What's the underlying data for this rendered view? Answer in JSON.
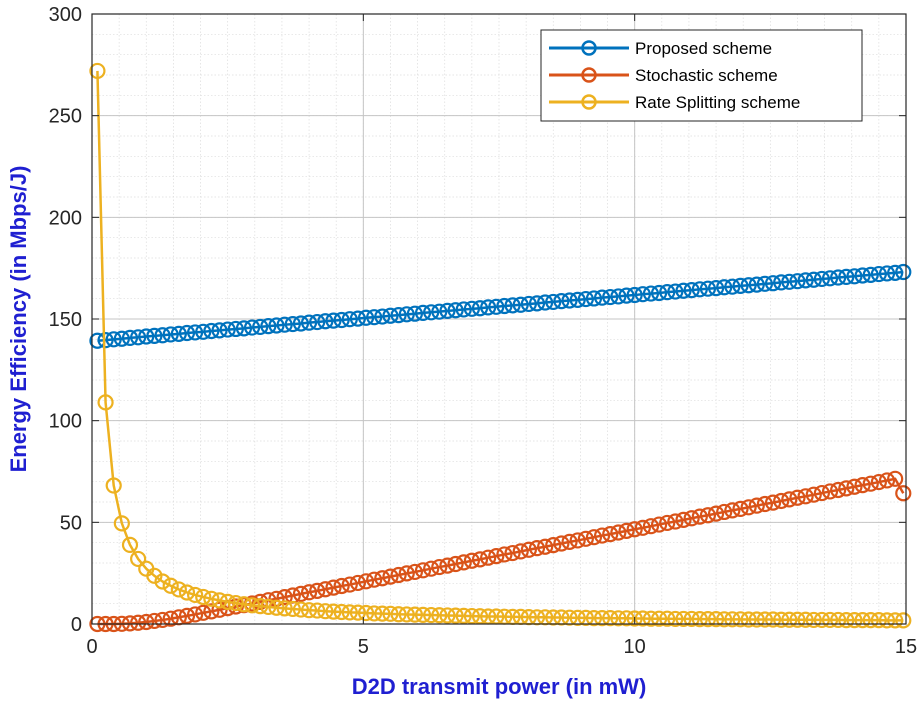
{
  "chart_data": {
    "type": "line",
    "title": "",
    "xlabel": "D2D transmit power (in mW)",
    "ylabel": "Energy Efficiency (in Mbps/J)",
    "xlim": [
      0,
      15
    ],
    "ylim": [
      0,
      300
    ],
    "xticks": [
      0,
      5,
      10,
      15
    ],
    "yticks": [
      0,
      50,
      100,
      150,
      200,
      250,
      300
    ],
    "grid": true,
    "minor_grid": true,
    "legend_position": "top-right",
    "x": [
      0.1,
      0.25,
      0.4,
      0.55,
      0.7,
      0.85,
      1.0,
      1.15,
      1.3,
      1.45,
      1.6,
      1.75,
      1.9,
      2.05,
      2.2,
      2.35,
      2.5,
      2.65,
      2.8,
      2.95,
      3.1,
      3.25,
      3.4,
      3.55,
      3.7,
      3.85,
      4.0,
      4.15,
      4.3,
      4.45,
      4.6,
      4.75,
      4.9,
      5.05,
      5.2,
      5.35,
      5.5,
      5.65,
      5.8,
      5.95,
      6.1,
      6.25,
      6.4,
      6.55,
      6.7,
      6.85,
      7.0,
      7.15,
      7.3,
      7.45,
      7.6,
      7.75,
      7.9,
      8.05,
      8.2,
      8.35,
      8.5,
      8.65,
      8.8,
      8.95,
      9.1,
      9.25,
      9.4,
      9.55,
      9.7,
      9.85,
      10.0,
      10.15,
      10.3,
      10.45,
      10.6,
      10.75,
      10.9,
      11.05,
      11.2,
      11.35,
      11.5,
      11.65,
      11.8,
      11.95,
      12.1,
      12.25,
      12.4,
      12.55,
      12.7,
      12.85,
      13.0,
      13.15,
      13.3,
      13.45,
      13.6,
      13.75,
      13.9,
      14.05,
      14.2,
      14.35,
      14.5,
      14.65,
      14.8,
      14.95
    ],
    "series": [
      {
        "name": "Proposed scheme",
        "color": "#0072BD",
        "values": [
          139.3,
          139.6,
          140.0,
          140.3,
          140.7,
          141.0,
          141.4,
          141.7,
          142.0,
          142.4,
          142.7,
          143.1,
          143.4,
          143.7,
          144.1,
          144.4,
          144.8,
          145.1,
          145.4,
          145.8,
          146.1,
          146.5,
          146.8,
          147.2,
          147.5,
          147.8,
          148.2,
          148.5,
          148.9,
          149.2,
          149.5,
          149.9,
          150.2,
          150.6,
          150.9,
          151.2,
          151.6,
          151.9,
          152.3,
          152.6,
          153.0,
          153.3,
          153.6,
          154.0,
          154.3,
          154.7,
          155.0,
          155.3,
          155.7,
          156.0,
          156.4,
          156.7,
          157.0,
          157.4,
          157.7,
          158.1,
          158.4,
          158.8,
          159.1,
          159.4,
          159.8,
          160.1,
          160.5,
          160.8,
          161.1,
          161.5,
          161.8,
          162.2,
          162.5,
          162.8,
          163.2,
          163.5,
          163.9,
          164.2,
          164.6,
          164.9,
          165.2,
          165.6,
          165.9,
          166.3,
          166.6,
          166.9,
          167.3,
          167.6,
          168.0,
          168.3,
          168.6,
          169.0,
          169.3,
          169.7,
          170.0,
          170.4,
          170.7,
          171.0,
          171.4,
          171.7,
          172.1,
          172.4,
          172.7,
          173.1
        ]
      },
      {
        "name": "Stochastic scheme",
        "color": "#D95319",
        "values": [
          0.0,
          0.0,
          0.0,
          0.1,
          0.3,
          0.6,
          1.0,
          1.5,
          2.0,
          2.6,
          3.3,
          4.0,
          4.7,
          5.5,
          6.2,
          7.0,
          7.8,
          8.6,
          9.3,
          10.1,
          10.9,
          11.7,
          12.4,
          13.2,
          14.0,
          14.8,
          15.6,
          16.3,
          17.1,
          17.9,
          18.7,
          19.4,
          20.2,
          21.0,
          21.8,
          22.5,
          23.3,
          24.1,
          24.9,
          25.6,
          26.4,
          27.2,
          28.0,
          28.7,
          29.5,
          30.3,
          31.1,
          31.8,
          32.6,
          33.4,
          34.2,
          34.9,
          35.7,
          36.5,
          37.3,
          38.0,
          38.8,
          39.6,
          40.4,
          41.1,
          41.9,
          42.7,
          43.5,
          44.2,
          45.0,
          45.8,
          46.6,
          47.3,
          48.1,
          48.9,
          49.7,
          50.4,
          51.2,
          52.0,
          52.8,
          53.5,
          54.3,
          55.1,
          55.9,
          56.6,
          57.4,
          58.2,
          59.0,
          59.7,
          60.5,
          61.3,
          62.1,
          62.8,
          63.6,
          64.4,
          65.2,
          65.9,
          66.7,
          67.5,
          68.3,
          69.0,
          69.8,
          70.6,
          71.4,
          64.3
        ]
      },
      {
        "name": "Rate Splitting scheme",
        "color": "#EDB120",
        "values": [
          272.0,
          109.0,
          68.1,
          49.5,
          38.9,
          32.0,
          27.2,
          23.7,
          20.9,
          18.8,
          17.0,
          15.5,
          14.3,
          13.3,
          12.4,
          11.6,
          10.9,
          10.3,
          9.7,
          9.2,
          8.8,
          8.4,
          8.0,
          7.7,
          7.4,
          7.1,
          6.8,
          6.6,
          6.3,
          6.1,
          5.9,
          5.7,
          5.6,
          5.4,
          5.2,
          5.1,
          5.0,
          4.8,
          4.7,
          4.6,
          4.5,
          4.4,
          4.3,
          4.2,
          4.1,
          4.0,
          3.9,
          3.8,
          3.7,
          3.7,
          3.6,
          3.5,
          3.5,
          3.4,
          3.3,
          3.3,
          3.2,
          3.2,
          3.1,
          3.0,
          3.0,
          2.9,
          2.9,
          2.9,
          2.8,
          2.8,
          2.7,
          2.7,
          2.6,
          2.6,
          2.6,
          2.5,
          2.5,
          2.5,
          2.4,
          2.4,
          2.4,
          2.3,
          2.3,
          2.3,
          2.2,
          2.2,
          2.2,
          2.2,
          2.1,
          2.1,
          2.1,
          2.1,
          2.0,
          2.0,
          2.0,
          2.0,
          1.9,
          1.9,
          1.9,
          1.9,
          1.9,
          1.8,
          1.8,
          1.8
        ]
      }
    ]
  }
}
